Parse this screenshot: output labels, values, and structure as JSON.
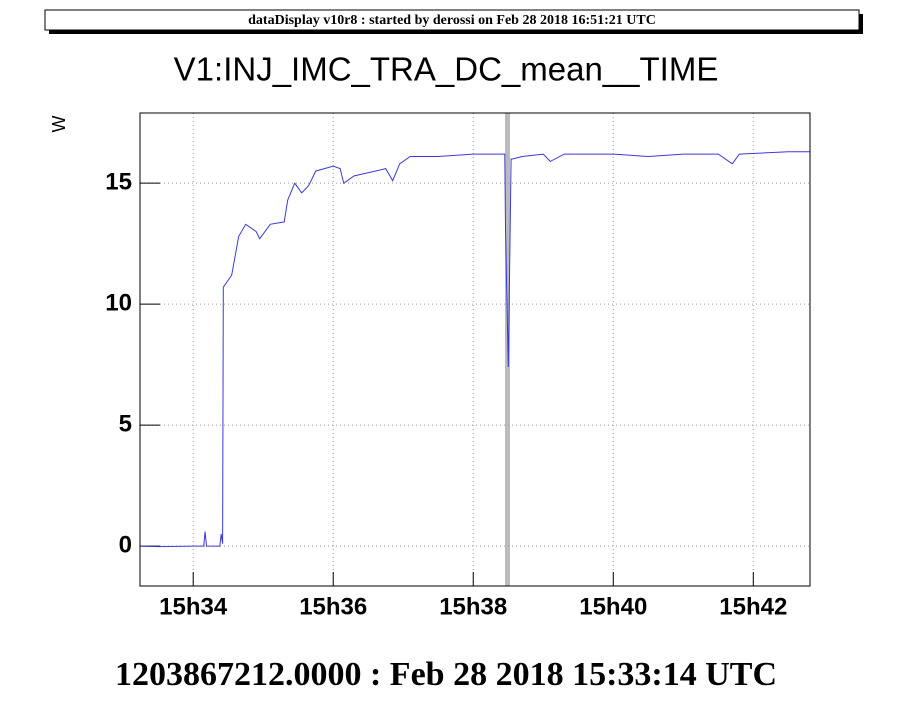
{
  "header": "dataDisplay v10r8 : started by derossi on Feb 28 2018 16:51:21 UTC",
  "footer": "1203867212.0000 : Feb 28 2018 15:33:14 UTC",
  "chart_data": {
    "type": "line",
    "title": "V1:INJ_IMC_TRA_DC_mean__TIME",
    "y_label": "W",
    "color": "#3a3ad8",
    "grid": true,
    "x": [
      33.24,
      33.5,
      34.0,
      34.15,
      34.17,
      34.19,
      34.38,
      34.4,
      34.42,
      34.43,
      34.55,
      34.6,
      34.65,
      34.75,
      34.9,
      34.95,
      35.1,
      35.3,
      35.35,
      35.45,
      35.55,
      35.65,
      35.75,
      36.0,
      36.1,
      36.15,
      36.3,
      36.6,
      36.75,
      36.85,
      36.95,
      37.1,
      37.5,
      38.0,
      38.45,
      38.46,
      38.5,
      38.54,
      38.56,
      38.7,
      39.0,
      39.1,
      39.3,
      40.0,
      40.5,
      41.0,
      41.5,
      41.7,
      41.8,
      42.5,
      42.81
    ],
    "values": [
      0.0,
      -0.02,
      0.0,
      0.0,
      0.6,
      0.0,
      0.0,
      0.5,
      0.1,
      10.7,
      11.2,
      12.0,
      12.8,
      13.3,
      13.0,
      12.7,
      13.3,
      13.4,
      14.3,
      15.0,
      14.6,
      14.9,
      15.5,
      15.7,
      15.6,
      15.0,
      15.3,
      15.5,
      15.6,
      15.1,
      15.8,
      16.1,
      16.1,
      16.2,
      16.2,
      13.1,
      7.4,
      16.0,
      16.0,
      16.1,
      16.2,
      15.9,
      16.2,
      16.2,
      16.1,
      16.2,
      16.2,
      15.8,
      16.2,
      16.3,
      16.3
    ],
    "xlim": [
      33.24,
      42.81
    ],
    "ylim": [
      -1.65,
      17.9
    ],
    "xticks": [
      {
        "value": 34,
        "label": "15h34"
      },
      {
        "value": 36,
        "label": "15h36"
      },
      {
        "value": 38,
        "label": "15h38"
      },
      {
        "value": 40,
        "label": "15h40"
      },
      {
        "value": 42,
        "label": "15h42"
      }
    ],
    "yticks": [
      0,
      5,
      10,
      15
    ]
  }
}
